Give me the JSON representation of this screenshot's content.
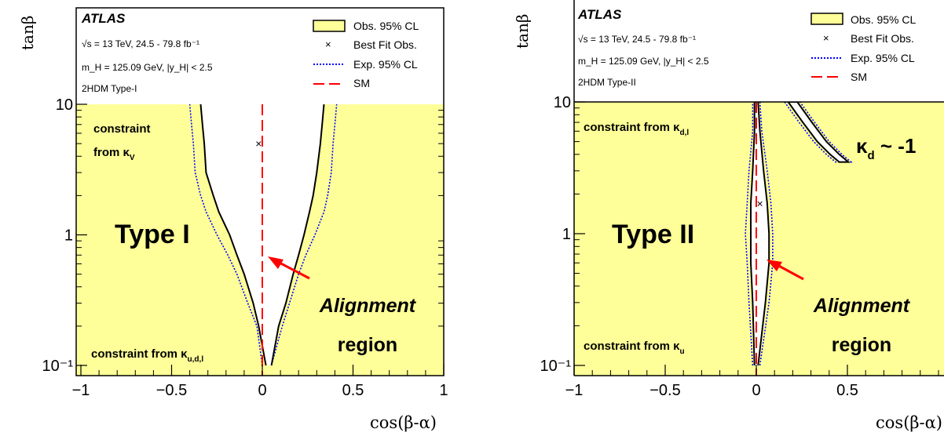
{
  "chart_data": [
    {
      "type": "area",
      "panel_label": "Type I",
      "experiment": "ATLAS",
      "info_lines": [
        "√s = 13 TeV, 24.5 - 79.8 fb⁻¹",
        "m_H = 125.09 GeV, |y_H| < 2.5",
        "2HDM Type-I"
      ],
      "xlabel": "cos(β-α)",
      "ylabel": "tanβ",
      "xlim": [
        -1,
        1
      ],
      "ylim": [
        0.1,
        10
      ],
      "y_scale": "log",
      "x_ticks": [
        "−1",
        "−0.5",
        "0",
        "0.5",
        "1"
      ],
      "y_ticks": [
        "10⁻¹",
        "1",
        "10"
      ],
      "legend": [
        "Obs. 95% CL",
        "Best Fit Obs.",
        "Exp. 95% CL",
        "SM"
      ],
      "best_fit": {
        "x": -0.02,
        "y": 5.0
      },
      "sm_line_x": 0,
      "allowed_region": {
        "y": [
          0.1,
          0.2,
          0.3,
          0.5,
          0.7,
          1.0,
          1.5,
          2.0,
          3.0,
          5.0,
          7.0,
          10.0
        ],
        "obs_left": [
          0.02,
          -0.02,
          -0.05,
          -0.1,
          -0.14,
          -0.18,
          -0.24,
          -0.27,
          -0.31,
          -0.32,
          -0.33,
          -0.34
        ],
        "obs_right": [
          0.05,
          0.09,
          0.13,
          0.17,
          0.2,
          0.23,
          0.26,
          0.28,
          0.3,
          0.32,
          0.33,
          0.34
        ],
        "exp_left": [
          0.0,
          -0.03,
          -0.08,
          -0.14,
          -0.19,
          -0.25,
          -0.31,
          -0.34,
          -0.37,
          -0.38,
          -0.39,
          -0.4
        ],
        "exp_right": [
          0.05,
          0.11,
          0.15,
          0.2,
          0.24,
          0.29,
          0.34,
          0.36,
          0.38,
          0.39,
          0.4,
          0.41
        ]
      },
      "annotations": [
        "constraint from κV",
        "constraint from κu,d,l",
        "Alignment",
        "region"
      ]
    },
    {
      "type": "area",
      "panel_label": "Type II",
      "experiment": "ATLAS",
      "info_lines": [
        "√s = 13 TeV, 24.5 - 79.8 fb⁻¹",
        "m_H = 125.09 GeV, |y_H| < 2.5",
        "2HDM Type-II"
      ],
      "xlabel": "cos(β-α)",
      "ylabel": "tanβ",
      "xlim": [
        -1,
        1
      ],
      "ylim": [
        0.1,
        10
      ],
      "y_scale": "log",
      "x_ticks": [
        "−1",
        "−0.5",
        "0",
        "0.5"
      ],
      "y_ticks": [
        "10⁻¹",
        "1",
        "10"
      ],
      "legend": [
        "Obs. 95% CL",
        "Best Fit Obs.",
        "Exp. 95% CL",
        "SM"
      ],
      "best_fit": {
        "x": 0.02,
        "y": 1.7
      },
      "sm_line_x": 0,
      "allowed_region": {
        "y": [
          0.1,
          0.3,
          0.6,
          1.0,
          1.7,
          3.0,
          6.0,
          10.0
        ],
        "obs_left": [
          -0.01,
          -0.02,
          -0.03,
          -0.03,
          -0.03,
          -0.02,
          -0.01,
          -0.01
        ],
        "obs_right": [
          0.01,
          0.05,
          0.07,
          0.07,
          0.06,
          0.04,
          0.02,
          0.01
        ],
        "exp_left": [
          -0.02,
          -0.04,
          -0.05,
          -0.06,
          -0.05,
          -0.04,
          -0.02,
          -0.02
        ],
        "exp_right": [
          0.02,
          0.07,
          0.09,
          0.09,
          0.08,
          0.06,
          0.03,
          0.02
        ]
      },
      "wrong_sign_band": {
        "y": [
          10.0,
          7.0,
          5.0,
          4.0,
          3.5
        ],
        "x_center": [
          0.2,
          0.28,
          0.36,
          0.43,
          0.48
        ]
      },
      "annotations": [
        "constraint from κd,l",
        "constraint from κu",
        "κd ~ -1",
        "Alignment",
        "region"
      ]
    }
  ],
  "colors": {
    "excluded": "#ffff99",
    "allowed": "#ffffff",
    "obs_contour": "#000000",
    "exp_contour": "#0000ff",
    "sm_line": "#ff0000",
    "alignment_text": "#ff0000",
    "kd_text": "#0000cc"
  }
}
